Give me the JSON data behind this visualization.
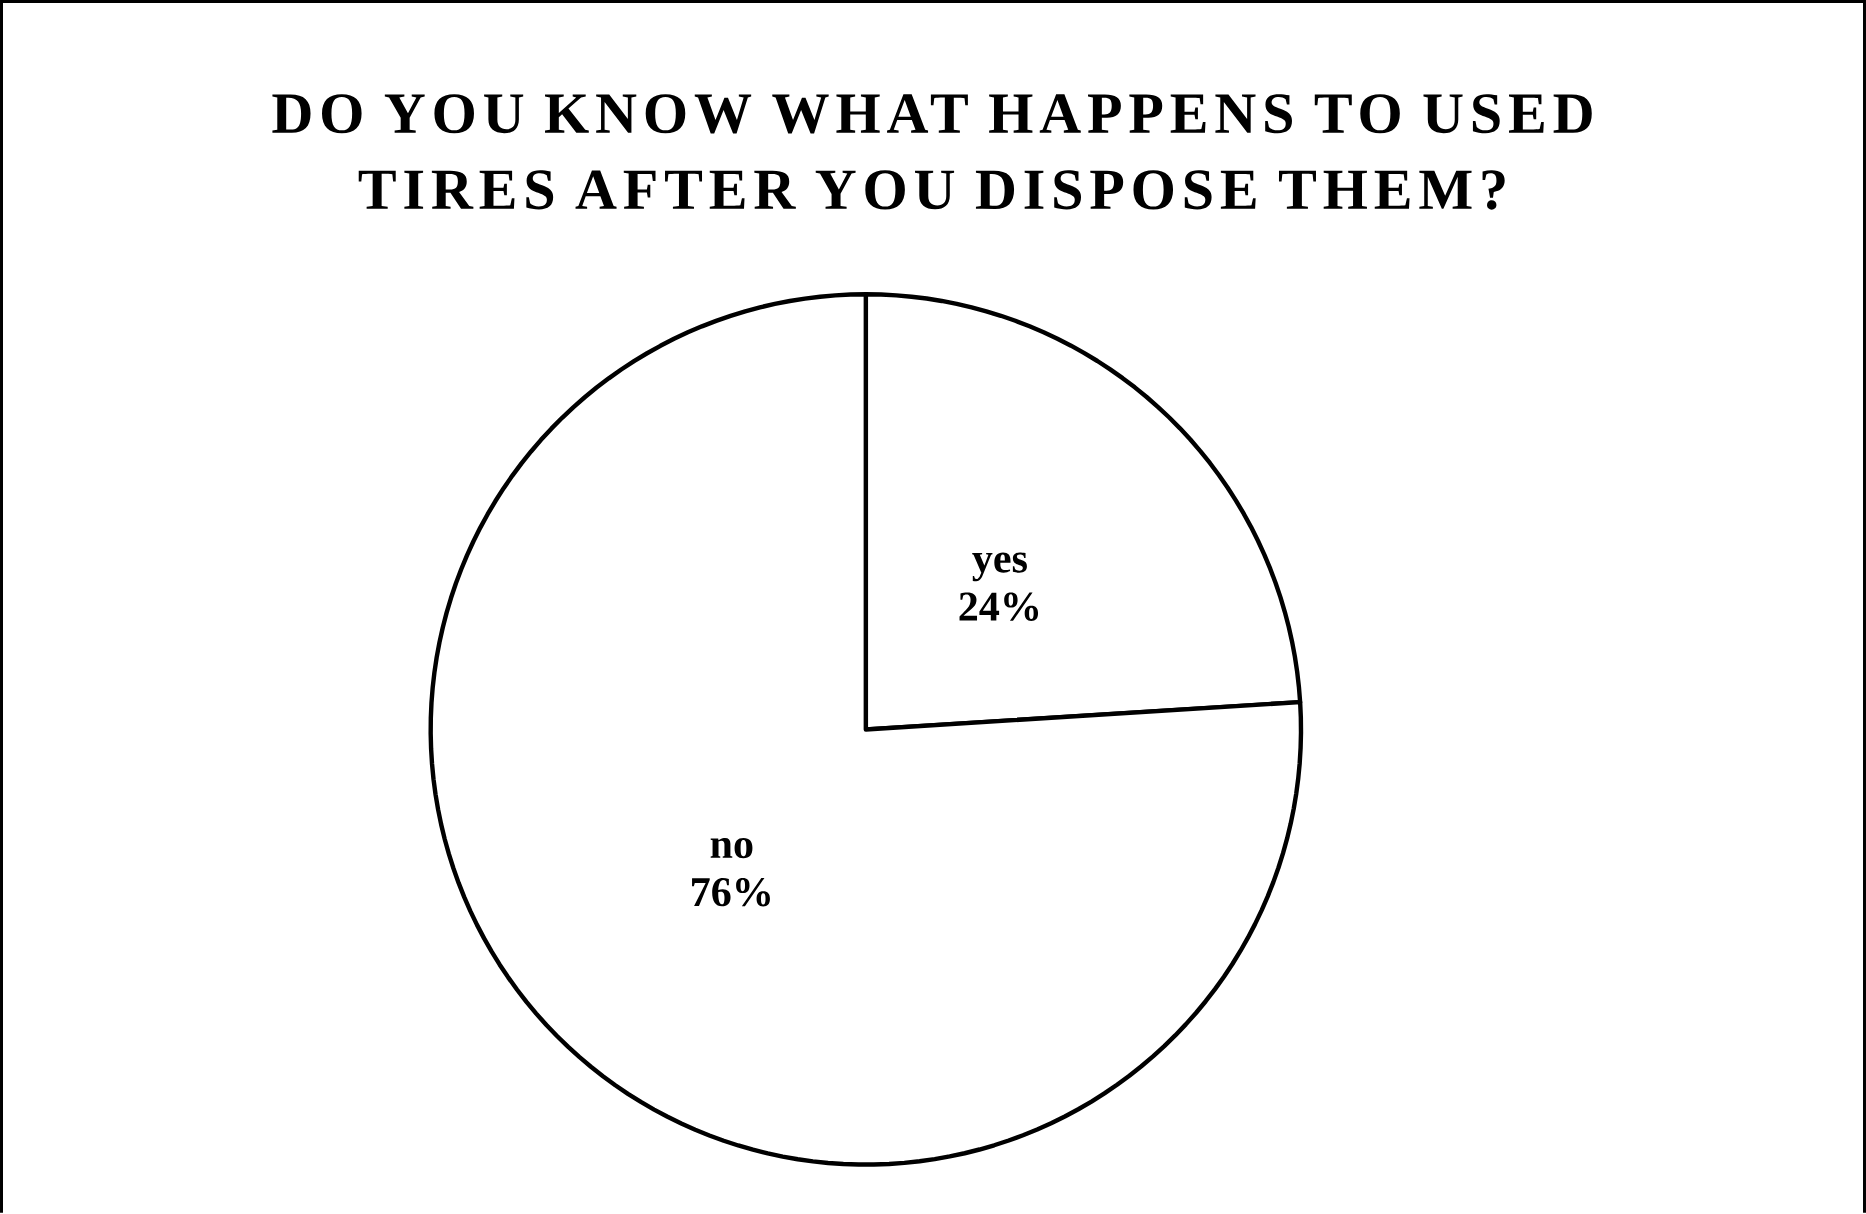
{
  "chart_data": {
    "type": "pie",
    "title": "DO YOU KNOW WHAT HAPPENS TO USED TIRES AFTER YOU DISPOSE THEM?",
    "categories": [
      "yes",
      "no"
    ],
    "values": [
      24,
      76
    ],
    "value_labels": [
      "24%",
      "76%"
    ],
    "colors": [
      "#ffffff",
      "#ffffff"
    ]
  }
}
